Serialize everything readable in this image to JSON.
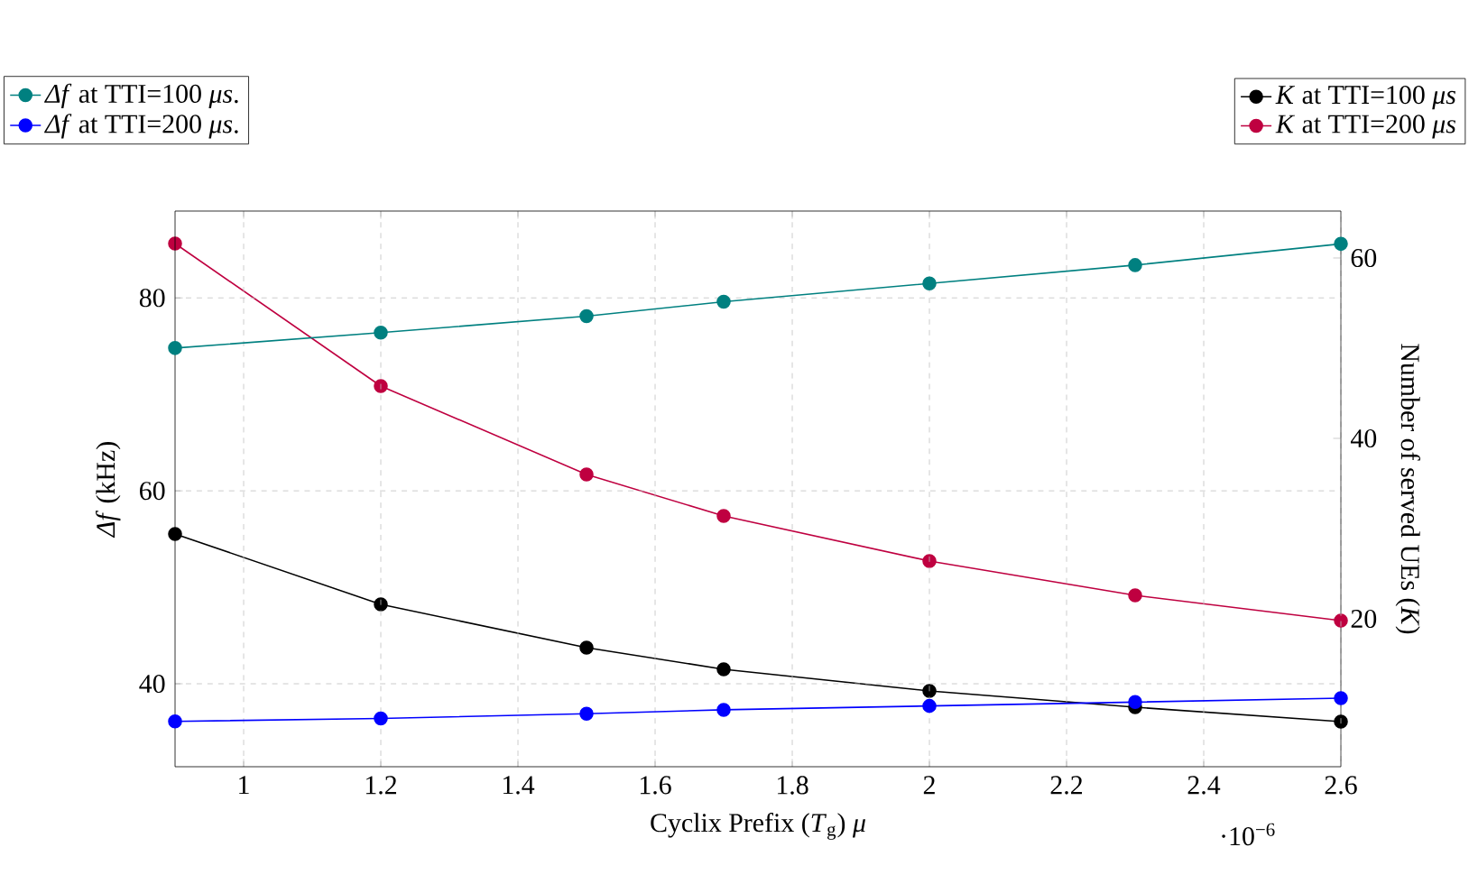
{
  "chart_data": {
    "type": "line",
    "xlabel": "Cyclix Prefix (*T*$_{g}$) *μ*",
    "ylabel": "*Δf* (kHz)",
    "y2label": "Number of served UEs (*K*)",
    "annotations": [
      "·10$^{−6}$"
    ],
    "x": [
      0.9,
      1.2,
      1.5,
      1.7,
      2,
      2.3,
      2.6
    ],
    "series": [
      {
        "name": "*Δf* at TTI=100 *μs*.",
        "color": "#008080",
        "values": [
          74.8,
          76.4,
          78.1,
          79.6,
          81.5,
          83.4,
          85.6
        ]
      },
      {
        "name": "*Δf* at TTI=200 *μs*.",
        "color": "#0000ff",
        "values": [
          36.1,
          36.4,
          36.9,
          37.3,
          37.7,
          38.1,
          38.5
        ]
      },
      {
        "name": "*K* at TTI=100 *μs*",
        "color": "#000000",
        "axis": "y2",
        "values": [
          29.4,
          21.6,
          16.8,
          14.4,
          12.0,
          10.2,
          8.6
        ]
      },
      {
        "name": "*K* at TTI=200 *μs*",
        "color": "#bf0040",
        "axis": "y2",
        "values": [
          61.6,
          45.8,
          36.0,
          31.4,
          26.4,
          22.6,
          19.8
        ]
      }
    ],
    "xlim": [
      0.9,
      2.6
    ],
    "xticks": [
      1,
      1.2,
      1.4,
      1.6,
      1.8,
      2,
      2.2,
      2.4,
      2.6
    ],
    "ylim": [
      31.4,
      89
    ],
    "yticks": [
      40,
      60,
      80
    ],
    "y2lim": [
      3.6,
      65.2
    ],
    "y2ticks": [
      20,
      40,
      60
    ],
    "grid": true,
    "legend": "top",
    "marker": "circle",
    "line_style": "solid"
  }
}
